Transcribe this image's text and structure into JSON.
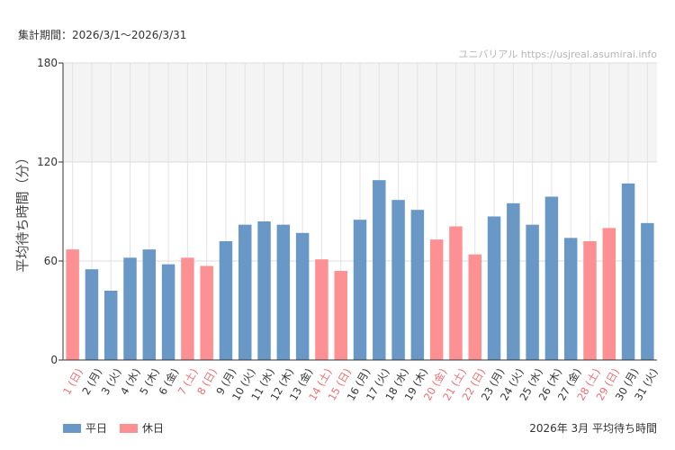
{
  "header": {
    "period": "集計期間：2026/3/1〜2026/3/31"
  },
  "watermark": "ユニバリアル  https://usjreal.asumirai.info",
  "footer": {
    "title": "2026年 3月 平均待ち時間"
  },
  "legend": [
    {
      "label": "平日",
      "color": "#6a98c6"
    },
    {
      "label": "休日",
      "color": "#fc9093"
    }
  ],
  "colors": {
    "weekday": "#6a98c6",
    "holiday": "#fc9093",
    "holiday_label": "#ef6e73",
    "band": "#f4f4f4",
    "grid": "#e3e3e3"
  },
  "chart_data": {
    "type": "bar",
    "ylabel": "平均待ち時間（分）",
    "ylim": [
      0,
      180
    ],
    "yticks": [
      0,
      60,
      120,
      180
    ],
    "highlight_band": [
      120,
      180
    ],
    "categories": [
      "1 (日)",
      "2 (月)",
      "3 (火)",
      "4 (水)",
      "5 (木)",
      "6 (金)",
      "7 (土)",
      "8 (日)",
      "9 (月)",
      "10 (火)",
      "11 (水)",
      "12 (木)",
      "13 (金)",
      "14 (土)",
      "15 (日)",
      "16 (月)",
      "17 (火)",
      "18 (水)",
      "19 (木)",
      "20 (金)",
      "21 (土)",
      "22 (日)",
      "23 (月)",
      "24 (火)",
      "25 (水)",
      "26 (木)",
      "27 (金)",
      "28 (土)",
      "29 (日)",
      "30 (月)",
      "31 (火)"
    ],
    "values": [
      67,
      55,
      42,
      62,
      67,
      58,
      62,
      57,
      72,
      82,
      84,
      82,
      77,
      61,
      54,
      85,
      109,
      97,
      91,
      73,
      81,
      64,
      87,
      95,
      82,
      99,
      74,
      72,
      80,
      107,
      83
    ],
    "holiday": [
      true,
      false,
      false,
      false,
      false,
      false,
      true,
      true,
      false,
      false,
      false,
      false,
      false,
      true,
      true,
      false,
      false,
      false,
      false,
      true,
      true,
      true,
      false,
      false,
      false,
      false,
      false,
      true,
      true,
      false,
      false
    ]
  }
}
